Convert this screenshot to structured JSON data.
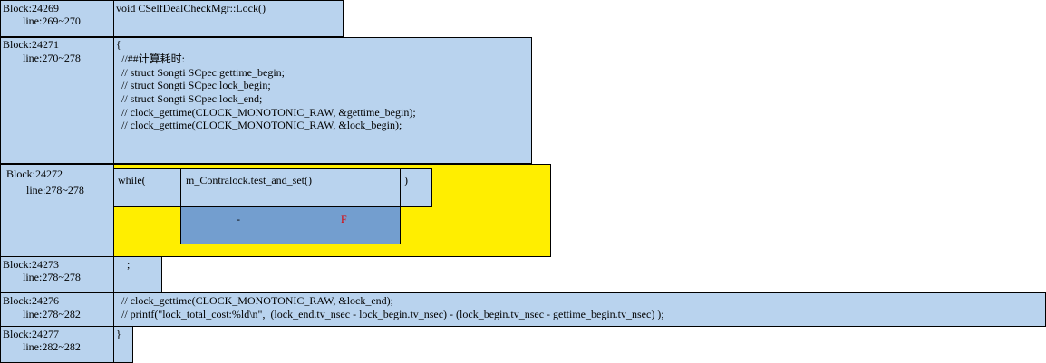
{
  "blocks": [
    {
      "block": "Block:24269",
      "lines": "line:269~270",
      "code": [
        "void CSelfDealCheckMgr::Lock()"
      ]
    },
    {
      "block": "Block:24271",
      "lines": "line:270~278",
      "code": [
        "{",
        "  //##计算耗时:",
        "  // struct Songti SCpec gettime_begin;",
        "  // struct Songti SCpec lock_begin;",
        "  // struct Songti SCpec lock_end;",
        "  // clock_gettime(CLOCK_MONOTONIC_RAW, &gettime_begin);",
        "  // clock_gettime(CLOCK_MONOTONIC_RAW, &lock_begin);"
      ]
    },
    {
      "block": "Block:24272",
      "lines": "line:278~278",
      "prefix": "while(",
      "condition": "m_Contralock.test_and_set()",
      "suffix": ")",
      "true_label": "-",
      "false_label": "F"
    },
    {
      "block": "Block:24273",
      "lines": "line:278~278",
      "code": [
        "    ;"
      ]
    },
    {
      "block": "Block:24276",
      "lines": "line:278~282",
      "code": [
        "  // clock_gettime(CLOCK_MONOTONIC_RAW, &lock_end);",
        "  // printf(\"lock_total_cost:%ld\\n\",  (lock_end.tv_nsec - lock_begin.tv_nsec) - (lock_begin.tv_nsec - gettime_begin.tv_nsec) );"
      ]
    },
    {
      "block": "Block:24277",
      "lines": "line:282~282",
      "code": [
        "}"
      ]
    }
  ]
}
